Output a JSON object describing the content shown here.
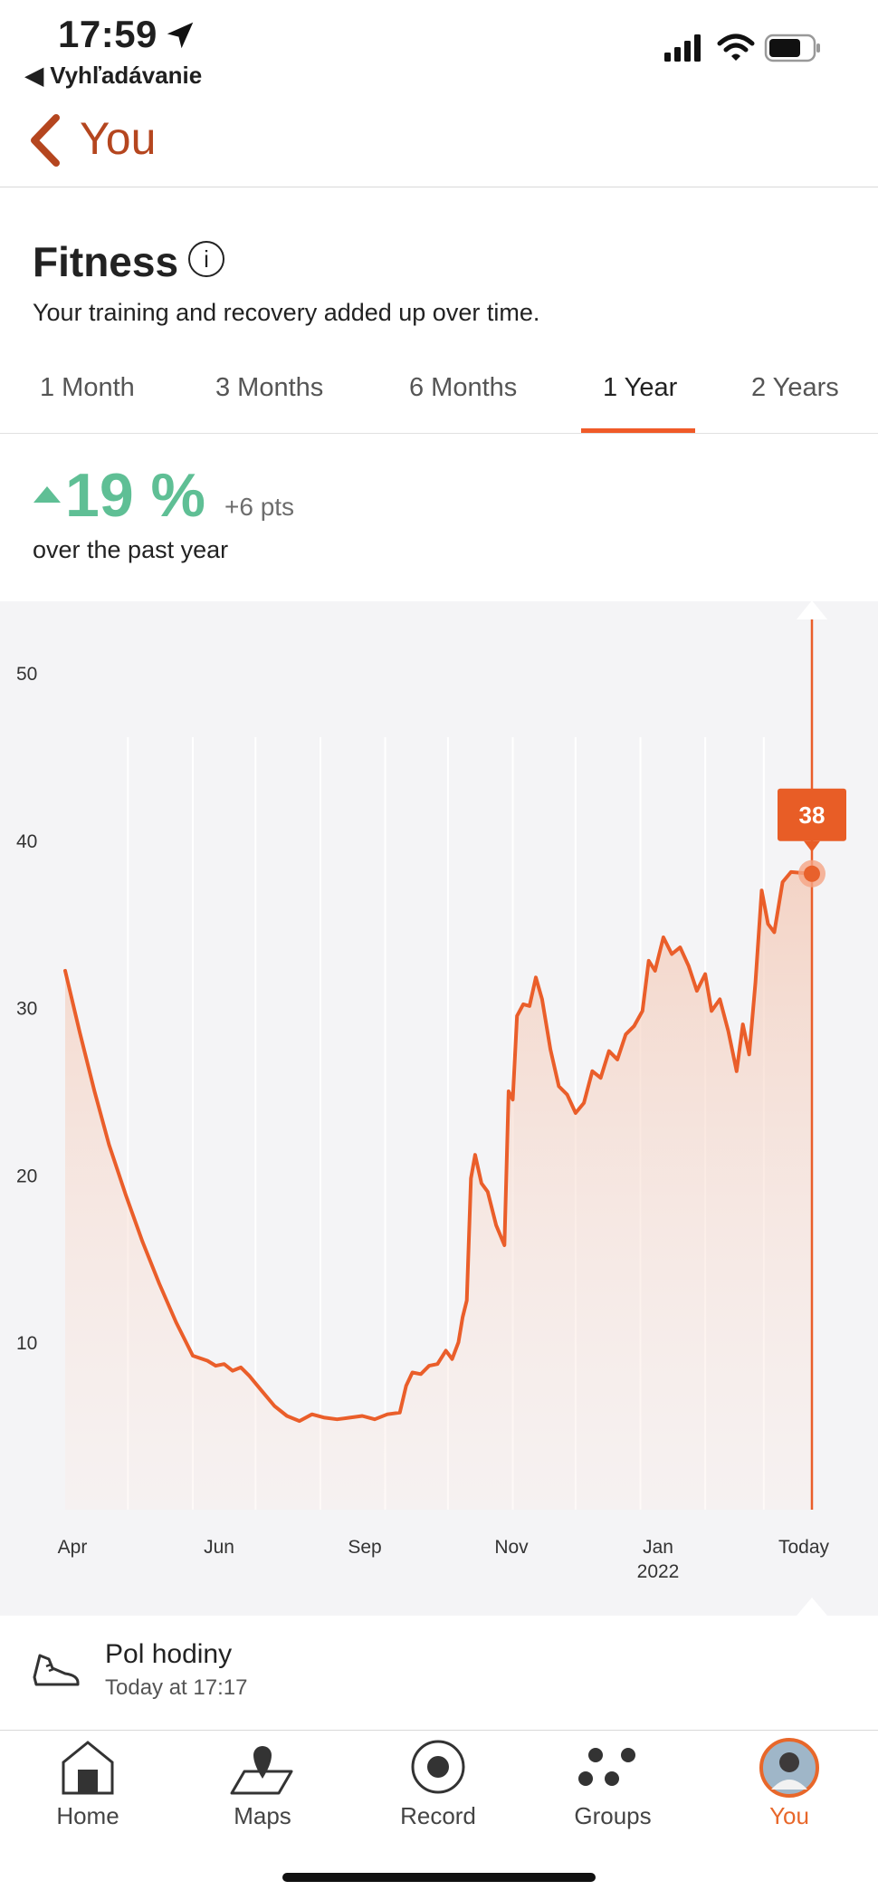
{
  "status_bar": {
    "time": "17:59",
    "back_app": "◀ Vyhľadávanie"
  },
  "nav": {
    "title": "You"
  },
  "header": {
    "title": "Fitness",
    "info_icon": "i",
    "subtitle": "Your training and recovery added up over time."
  },
  "tabs": [
    {
      "label": "1 Month"
    },
    {
      "label": "3 Months"
    },
    {
      "label": "6 Months"
    },
    {
      "label": "1 Year"
    },
    {
      "label": "2 Years"
    }
  ],
  "active_tab": "1 Year",
  "stat": {
    "percent": "19 %",
    "points": "+6 pts",
    "period": "over the past year"
  },
  "colors": {
    "accent": "#f05a28",
    "positive": "#5fbf95",
    "brand_text": "#b5461f"
  },
  "chart_data": {
    "type": "area",
    "ylim": [
      0,
      50
    ],
    "y_ticks": [
      "10",
      "20",
      "30",
      "40",
      "50"
    ],
    "x_ticks": [
      {
        "label": "Apr",
        "sub": ""
      },
      {
        "label": "Jun",
        "sub": ""
      },
      {
        "label": "Sep",
        "sub": ""
      },
      {
        "label": "Nov",
        "sub": ""
      },
      {
        "label": "Jan",
        "sub": "2022"
      },
      {
        "label": "Today",
        "sub": ""
      }
    ],
    "x_domain": [
      "2021-04-01",
      "2022-03-24"
    ],
    "current_value": "38",
    "series": [
      {
        "points": [
          [
            "2021-04-01",
            32.2
          ],
          [
            "2021-04-08",
            28.5
          ],
          [
            "2021-04-15",
            25
          ],
          [
            "2021-04-22",
            21.8
          ],
          [
            "2021-04-30",
            18.8
          ],
          [
            "2021-05-08",
            16
          ],
          [
            "2021-05-16",
            13.5
          ],
          [
            "2021-05-24",
            11.2
          ],
          [
            "2021-06-01",
            9.2
          ],
          [
            "2021-06-08",
            8.9
          ],
          [
            "2021-06-12",
            8.6
          ],
          [
            "2021-06-16",
            8.7
          ],
          [
            "2021-06-20",
            8.3
          ],
          [
            "2021-06-24",
            8.5
          ],
          [
            "2021-06-28",
            8
          ],
          [
            "2021-07-04",
            7.1
          ],
          [
            "2021-07-10",
            6.2
          ],
          [
            "2021-07-16",
            5.6
          ],
          [
            "2021-07-22",
            5.3
          ],
          [
            "2021-07-28",
            5.7
          ],
          [
            "2021-08-03",
            5.5
          ],
          [
            "2021-08-09",
            5.4
          ],
          [
            "2021-08-15",
            5.5
          ],
          [
            "2021-08-21",
            5.6
          ],
          [
            "2021-08-27",
            5.4
          ],
          [
            "2021-09-02",
            5.7
          ],
          [
            "2021-09-08",
            5.8
          ],
          [
            "2021-09-11",
            7.4
          ],
          [
            "2021-09-14",
            8.2
          ],
          [
            "2021-09-18",
            8.1
          ],
          [
            "2021-09-22",
            8.6
          ],
          [
            "2021-09-26",
            8.7
          ],
          [
            "2021-09-30",
            9.5
          ],
          [
            "2021-10-03",
            9
          ],
          [
            "2021-10-06",
            10
          ],
          [
            "2021-10-08",
            11.5
          ],
          [
            "2021-10-10",
            12.5
          ],
          [
            "2021-10-12",
            19.8
          ],
          [
            "2021-10-14",
            21.2
          ],
          [
            "2021-10-17",
            19.5
          ],
          [
            "2021-10-20",
            19
          ],
          [
            "2021-10-24",
            17
          ],
          [
            "2021-10-28",
            15.8
          ],
          [
            "2021-10-30",
            25
          ],
          [
            "2021-11-01",
            24.5
          ],
          [
            "2021-11-03",
            29.5
          ],
          [
            "2021-11-06",
            30.2
          ],
          [
            "2021-11-09",
            30.1
          ],
          [
            "2021-11-12",
            31.8
          ],
          [
            "2021-11-15",
            30.5
          ],
          [
            "2021-11-19",
            27.5
          ],
          [
            "2021-11-23",
            25.3
          ],
          [
            "2021-11-27",
            24.8
          ],
          [
            "2021-12-01",
            23.7
          ],
          [
            "2021-12-05",
            24.3
          ],
          [
            "2021-12-09",
            26.2
          ],
          [
            "2021-12-13",
            25.8
          ],
          [
            "2021-12-17",
            27.4
          ],
          [
            "2021-12-21",
            26.9
          ],
          [
            "2021-12-25",
            28.4
          ],
          [
            "2021-12-29",
            28.9
          ],
          [
            "2022-01-02",
            29.8
          ],
          [
            "2022-01-05",
            32.8
          ],
          [
            "2022-01-08",
            32.2
          ],
          [
            "2022-01-12",
            34.2
          ],
          [
            "2022-01-16",
            33.2
          ],
          [
            "2022-01-20",
            33.6
          ],
          [
            "2022-01-24",
            32.5
          ],
          [
            "2022-01-28",
            31
          ],
          [
            "2022-02-01",
            32
          ],
          [
            "2022-02-04",
            29.8
          ],
          [
            "2022-02-08",
            30.5
          ],
          [
            "2022-02-12",
            28.6
          ],
          [
            "2022-02-16",
            26.2
          ],
          [
            "2022-02-19",
            29
          ],
          [
            "2022-02-22",
            27.2
          ],
          [
            "2022-02-25",
            31.5
          ],
          [
            "2022-02-28",
            37
          ],
          [
            "2022-03-03",
            35
          ],
          [
            "2022-03-06",
            34.5
          ],
          [
            "2022-03-10",
            37.5
          ],
          [
            "2022-03-14",
            38.1
          ],
          [
            "2022-03-24",
            38
          ]
        ]
      }
    ]
  },
  "activity": {
    "name": "Pol hodiny",
    "time": "Today at 17:17",
    "icon": "shoe-icon"
  },
  "tabbar": [
    {
      "label": "Home",
      "icon": "home-icon"
    },
    {
      "label": "Maps",
      "icon": "maps-icon"
    },
    {
      "label": "Record",
      "icon": "record-icon"
    },
    {
      "label": "Groups",
      "icon": "groups-icon"
    },
    {
      "label": "You",
      "icon": "avatar-icon"
    }
  ]
}
